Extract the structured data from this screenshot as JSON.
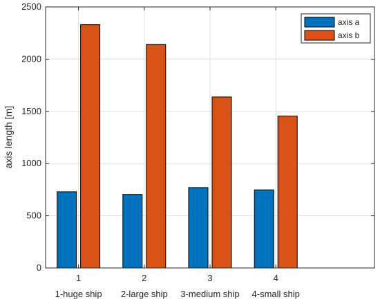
{
  "chart_data": {
    "type": "bar",
    "title": "",
    "xlabel": "",
    "ylabel": "axis length [m]",
    "categories": [
      "1",
      "2",
      "3",
      "4"
    ],
    "category_labels": [
      "1-huge ship",
      "2-large ship",
      "3-medium ship",
      "4-small ship"
    ],
    "series": [
      {
        "name": "axis a",
        "color": "#0072BD",
        "values": [
          730,
          705,
          770,
          748
        ]
      },
      {
        "name": "axis b",
        "color": "#D95319",
        "values": [
          2330,
          2140,
          1638,
          1455
        ]
      }
    ],
    "ylim": [
      0,
      2500
    ],
    "yticks": [
      0,
      500,
      1000,
      1500,
      2000,
      2500
    ],
    "grid": true,
    "legend_position": "top-right"
  }
}
